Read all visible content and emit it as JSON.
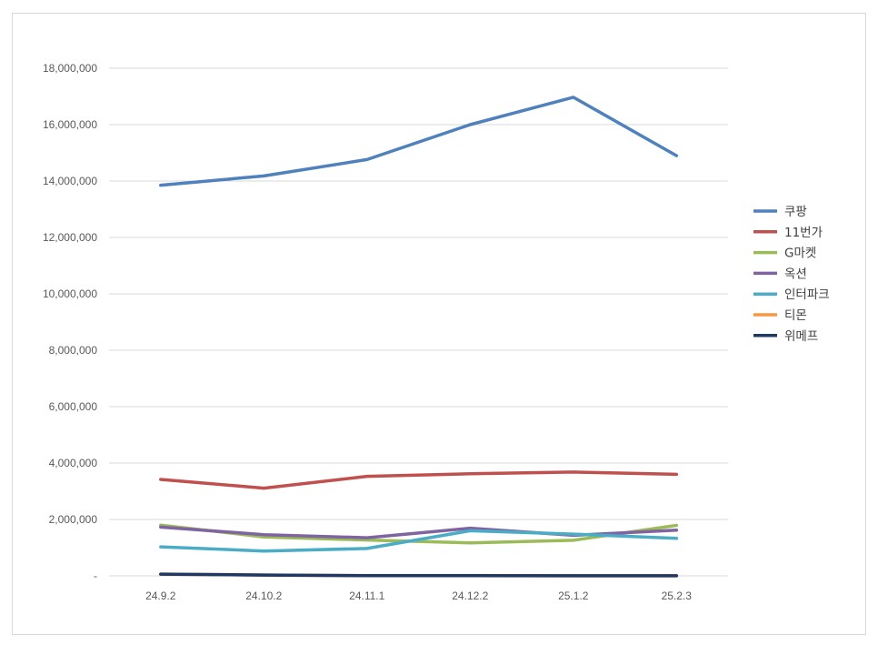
{
  "chart_data": {
    "type": "line",
    "title": "",
    "xlabel": "",
    "ylabel": "",
    "categories": [
      "24.9.2",
      "24.10.2",
      "24.11.1",
      "24.12.2",
      "25.1.2",
      "25.2.3"
    ],
    "ylim": [
      0,
      18000000
    ],
    "yticks": [
      0,
      2000000,
      4000000,
      6000000,
      8000000,
      10000000,
      12000000,
      14000000,
      16000000,
      18000000
    ],
    "ytick_labels": [
      "-",
      "2,000,000",
      "4,000,000",
      "6,000,000",
      "8,000,000",
      "10,000,000",
      "12,000,000",
      "14,000,000",
      "16,000,000",
      "18,000,000"
    ],
    "grid": true,
    "legend_position": "right",
    "series": [
      {
        "name": "쿠팡",
        "color": "#4f81bd",
        "values": [
          13850000,
          14180000,
          14760000,
          16000000,
          16970000,
          14900000
        ]
      },
      {
        "name": "11번가",
        "color": "#c0504d",
        "values": [
          3420000,
          3110000,
          3530000,
          3620000,
          3680000,
          3600000
        ]
      },
      {
        "name": "G마켓",
        "color": "#9bbb59",
        "values": [
          1800000,
          1380000,
          1270000,
          1170000,
          1260000,
          1790000
        ]
      },
      {
        "name": "옥션",
        "color": "#8064a2",
        "values": [
          1730000,
          1460000,
          1350000,
          1690000,
          1440000,
          1620000
        ]
      },
      {
        "name": "인터파크",
        "color": "#4bacc6",
        "values": [
          1030000,
          880000,
          970000,
          1600000,
          1480000,
          1330000
        ]
      },
      {
        "name": "티몬",
        "color": "#f79646",
        "values": [
          60000,
          30000,
          10000,
          5000,
          3000,
          2000
        ]
      },
      {
        "name": "위메프",
        "color": "#1f3864",
        "values": [
          60000,
          30000,
          10000,
          5000,
          3000,
          2000
        ]
      }
    ]
  }
}
